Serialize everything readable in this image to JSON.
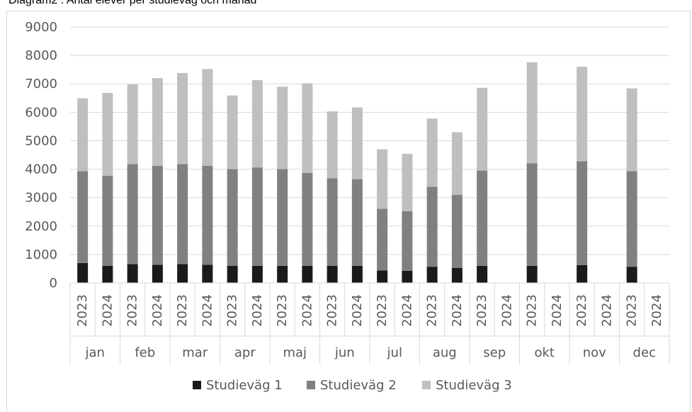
{
  "caption": "Diagram2 : Antal elever per studieväg och månad",
  "chart_data": {
    "type": "bar",
    "stacked": true,
    "title": "",
    "xlabel": "",
    "ylabel": "",
    "ylim": [
      0,
      9000
    ],
    "yticks": [
      0,
      1000,
      2000,
      3000,
      4000,
      5000,
      6000,
      7000,
      8000,
      9000
    ],
    "grid": true,
    "legend_position": "bottom",
    "months": [
      "jan",
      "feb",
      "mar",
      "apr",
      "maj",
      "jun",
      "jul",
      "aug",
      "sep",
      "okt",
      "nov",
      "dec"
    ],
    "years": [
      "2023",
      "2024"
    ],
    "series": [
      {
        "name": "Studieväg 1",
        "color": "#1a1a1a",
        "values": [
          [
            700,
            600
          ],
          [
            660,
            640
          ],
          [
            660,
            640
          ],
          [
            600,
            600
          ],
          [
            600,
            600
          ],
          [
            600,
            600
          ],
          [
            440,
            430
          ],
          [
            570,
            530
          ],
          [
            600,
            null
          ],
          [
            600,
            null
          ],
          [
            630,
            null
          ],
          [
            570,
            null
          ]
        ]
      },
      {
        "name": "Studieväg 2",
        "color": "#808080",
        "values": [
          [
            3230,
            3170
          ],
          [
            3520,
            3480
          ],
          [
            3520,
            3480
          ],
          [
            3400,
            3460
          ],
          [
            3400,
            3270
          ],
          [
            3080,
            3050
          ],
          [
            2170,
            2090
          ],
          [
            2810,
            2570
          ],
          [
            3350,
            null
          ],
          [
            3610,
            null
          ],
          [
            3650,
            null
          ],
          [
            3360,
            null
          ]
        ]
      },
      {
        "name": "Studieväg 3",
        "color": "#bfbfbf",
        "values": [
          [
            2560,
            2910
          ],
          [
            2800,
            3080
          ],
          [
            3200,
            3400
          ],
          [
            2590,
            3070
          ],
          [
            2900,
            3150
          ],
          [
            2350,
            2520
          ],
          [
            2090,
            2020
          ],
          [
            2400,
            2200
          ],
          [
            2910,
            null
          ],
          [
            3550,
            null
          ],
          [
            3320,
            null
          ],
          [
            2910,
            null
          ]
        ]
      }
    ]
  }
}
